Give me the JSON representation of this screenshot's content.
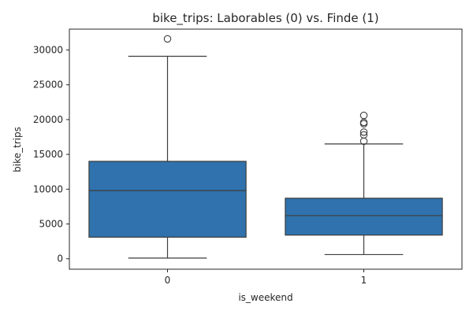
{
  "chart_data": {
    "type": "box",
    "title": "bike_trips: Laborables (0) vs. Finde (1)",
    "xlabel": "is_weekend",
    "ylabel": "bike_trips",
    "ylim": [
      -1500,
      33000
    ],
    "yticks": [
      0,
      5000,
      10000,
      15000,
      20000,
      25000,
      30000
    ],
    "categories": [
      "0",
      "1"
    ],
    "box_color": "#2f72ad",
    "line_color": "#3d3d3d",
    "grid": false,
    "boxes": [
      {
        "category": "0",
        "whisker_low": 100,
        "q1": 3100,
        "median": 9800,
        "q3": 14000,
        "whisker_high": 29100,
        "outliers": [
          31600
        ]
      },
      {
        "category": "1",
        "whisker_low": 600,
        "q1": 3400,
        "median": 6200,
        "q3": 8700,
        "whisker_high": 16500,
        "outliers": [
          16900,
          17800,
          18200,
          19400,
          19600,
          20600
        ]
      }
    ]
  }
}
